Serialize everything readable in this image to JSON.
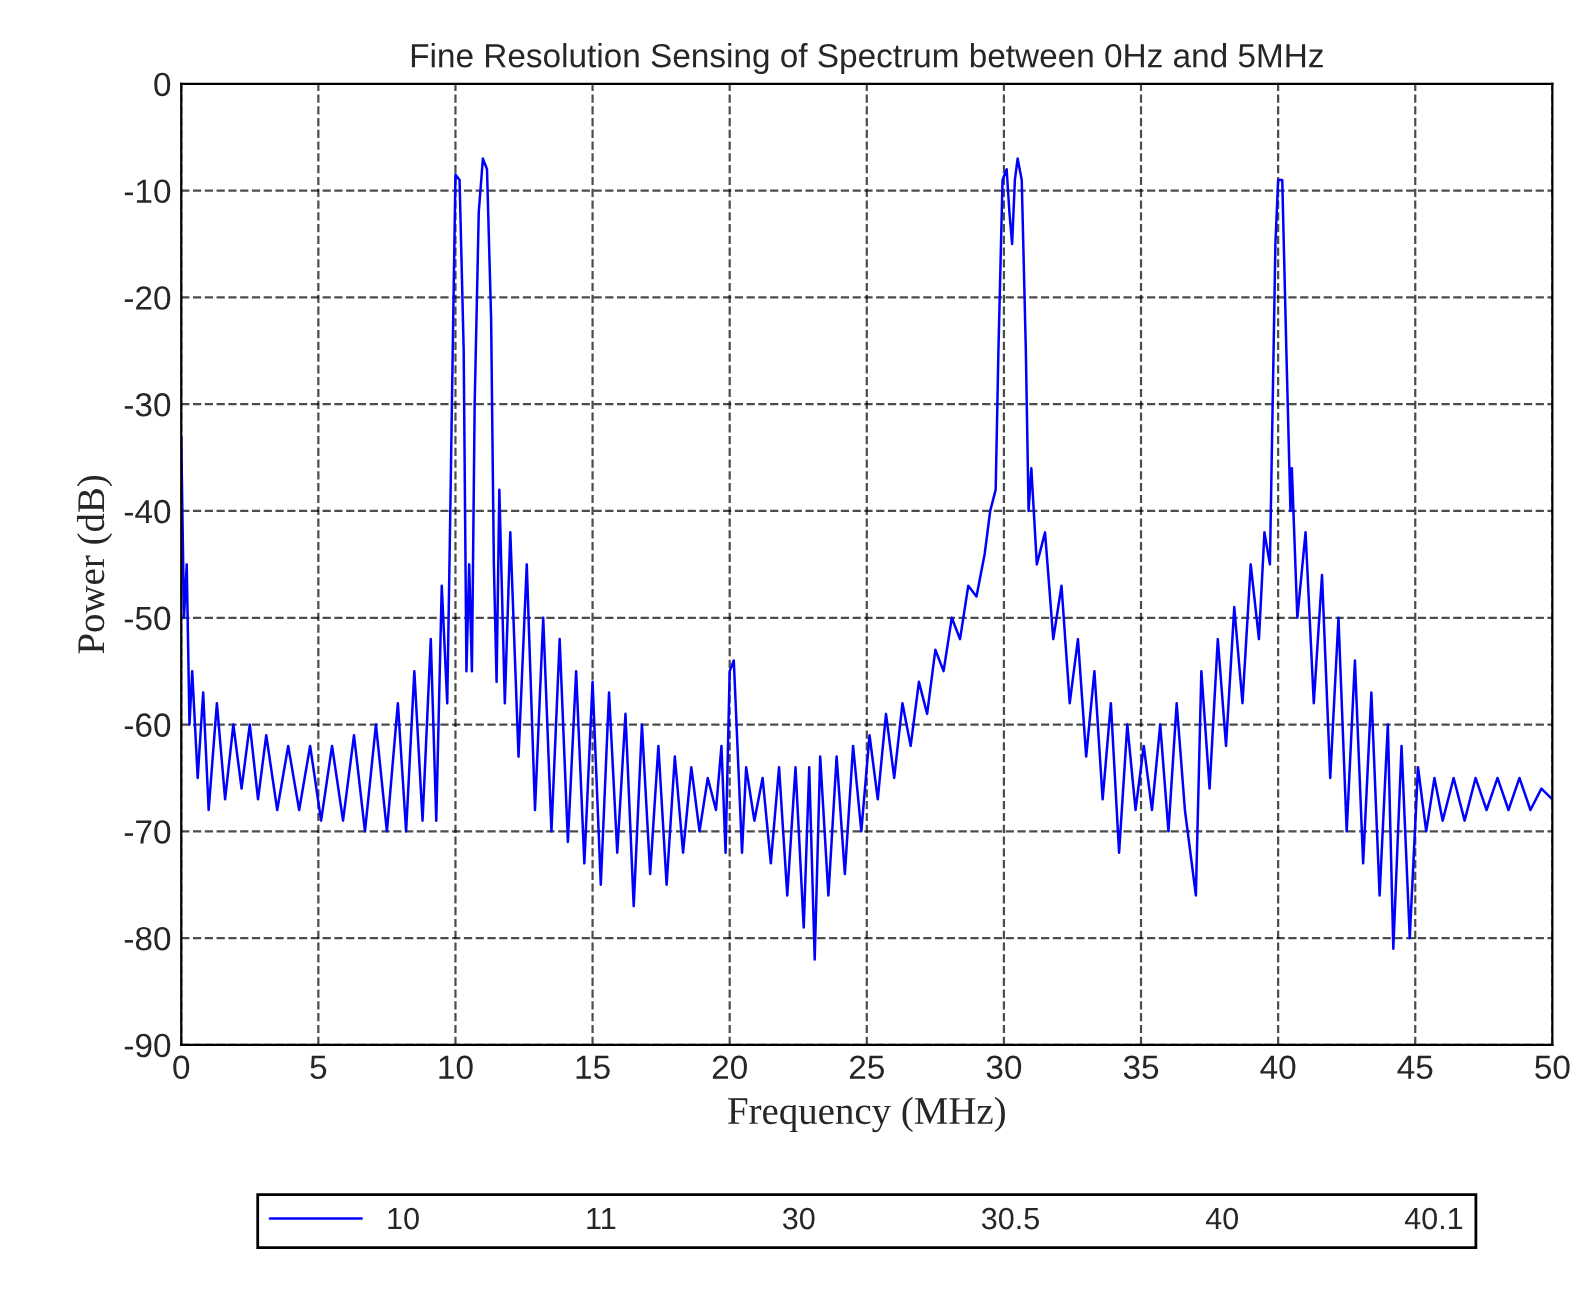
{
  "chart_data": {
    "type": "line",
    "title": "Fine Resolution Sensing of Spectrum between 0Hz and 5MHz",
    "xlabel": "Frequency (MHz)",
    "ylabel": "Power (dB)",
    "xlim": [
      0,
      50
    ],
    "xticks": [
      0,
      5,
      10,
      15,
      20,
      25,
      30,
      35,
      40,
      45,
      50
    ],
    "ylim": [
      -90,
      0
    ],
    "yticks": [
      -90,
      -80,
      -70,
      -60,
      -50,
      -40,
      -30,
      -20,
      -10,
      0
    ],
    "grid": true,
    "legend": "bottom",
    "annotations": [
      "11",
      "30",
      "30.5",
      "40",
      "40.1"
    ],
    "series": [
      {
        "name": "10",
        "color": "#0000ff",
        "x": [
          0,
          0.1,
          0.2,
          0.3,
          0.4,
          0.6,
          0.8,
          1.0,
          1.3,
          1.6,
          1.9,
          2.2,
          2.5,
          2.8,
          3.1,
          3.5,
          3.9,
          4.3,
          4.7,
          5.1,
          5.5,
          5.9,
          6.3,
          6.7,
          7.1,
          7.5,
          7.9,
          8.2,
          8.5,
          8.8,
          9.1,
          9.3,
          9.5,
          9.7,
          9.8,
          9.9,
          10.0,
          10.15,
          10.3,
          10.4,
          10.5,
          10.6,
          10.7,
          10.85,
          11.0,
          11.15,
          11.3,
          11.4,
          11.5,
          11.6,
          11.8,
          12.0,
          12.3,
          12.6,
          12.9,
          13.2,
          13.5,
          13.8,
          14.1,
          14.4,
          14.7,
          15.0,
          15.3,
          15.6,
          15.9,
          16.2,
          16.5,
          16.8,
          17.1,
          17.4,
          17.7,
          18.0,
          18.3,
          18.6,
          18.9,
          19.2,
          19.5,
          19.7,
          19.85,
          20.0,
          20.15,
          20.3,
          20.45,
          20.6,
          20.9,
          21.2,
          21.5,
          21.8,
          22.1,
          22.4,
          22.7,
          22.9,
          23.1,
          23.3,
          23.6,
          23.9,
          24.2,
          24.5,
          24.8,
          25.1,
          25.4,
          25.7,
          26.0,
          26.3,
          26.6,
          26.9,
          27.2,
          27.5,
          27.8,
          28.1,
          28.4,
          28.7,
          29.0,
          29.3,
          29.5,
          29.7,
          29.8,
          29.95,
          30.1,
          30.2,
          30.3,
          30.4,
          30.5,
          30.65,
          30.8,
          30.9,
          31.0,
          31.2,
          31.5,
          31.8,
          32.1,
          32.4,
          32.7,
          33.0,
          33.3,
          33.6,
          33.9,
          34.2,
          34.5,
          34.8,
          35.1,
          35.4,
          35.7,
          36.0,
          36.3,
          36.6,
          37.0,
          37.2,
          37.5,
          37.8,
          38.1,
          38.4,
          38.7,
          39.0,
          39.3,
          39.5,
          39.7,
          39.8,
          39.9,
          40.0,
          40.15,
          40.3,
          40.45,
          40.5,
          40.7,
          41.0,
          41.3,
          41.6,
          41.9,
          42.2,
          42.5,
          42.8,
          43.1,
          43.4,
          43.7,
          44.0,
          44.2,
          44.5,
          44.8,
          45.1,
          45.4,
          45.7,
          46.0,
          46.4,
          46.8,
          47.2,
          47.6,
          48.0,
          48.4,
          48.8,
          49.2,
          49.6,
          50.0
        ],
        "values": [
          -33,
          -50,
          -45,
          -60,
          -55,
          -65,
          -57,
          -68,
          -58,
          -67,
          -60,
          -66,
          -60,
          -67,
          -61,
          -68,
          -62,
          -68,
          -62,
          -69,
          -62,
          -69,
          -61,
          -70,
          -60,
          -70,
          -58,
          -70,
          -55,
          -69,
          -52,
          -69,
          -47,
          -58,
          -42,
          -25,
          -8.5,
          -9,
          -25,
          -55,
          -45,
          -55,
          -30,
          -12,
          -7,
          -8,
          -22,
          -45,
          -56,
          -38,
          -58,
          -42,
          -63,
          -45,
          -68,
          -50,
          -70,
          -52,
          -71,
          -55,
          -73,
          -56,
          -75,
          -57,
          -72,
          -59,
          -77,
          -60,
          -74,
          -62,
          -75,
          -63,
          -72,
          -64,
          -70,
          -65,
          -68,
          -62,
          -72,
          -55,
          -54,
          -63,
          -72,
          -64,
          -69,
          -65,
          -73,
          -64,
          -76,
          -64,
          -79,
          -64,
          -82,
          -63,
          -76,
          -63,
          -74,
          -62,
          -70,
          -61,
          -67,
          -59,
          -65,
          -58,
          -62,
          -56,
          -59,
          -53,
          -55,
          -50,
          -52,
          -47,
          -48,
          -44,
          -40,
          -38,
          -25,
          -9,
          -8,
          -12,
          -15,
          -9,
          -7,
          -9,
          -25,
          -40,
          -36,
          -45,
          -42,
          -52,
          -47,
          -58,
          -52,
          -63,
          -55,
          -67,
          -58,
          -72,
          -60,
          -68,
          -62,
          -68,
          -60,
          -70,
          -58,
          -68,
          -76,
          -55,
          -66,
          -52,
          -62,
          -49,
          -58,
          -45,
          -52,
          -42,
          -45,
          -30,
          -15,
          -9,
          -9,
          -25,
          -40,
          -36,
          -50,
          -42,
          -58,
          -46,
          -65,
          -50,
          -70,
          -54,
          -73,
          -57,
          -76,
          -60,
          -81,
          -62,
          -80,
          -64,
          -70,
          -65,
          -69,
          -65,
          -69,
          -65,
          -68,
          -65,
          -68,
          -65,
          -68,
          -66,
          -67
        ]
      }
    ]
  }
}
